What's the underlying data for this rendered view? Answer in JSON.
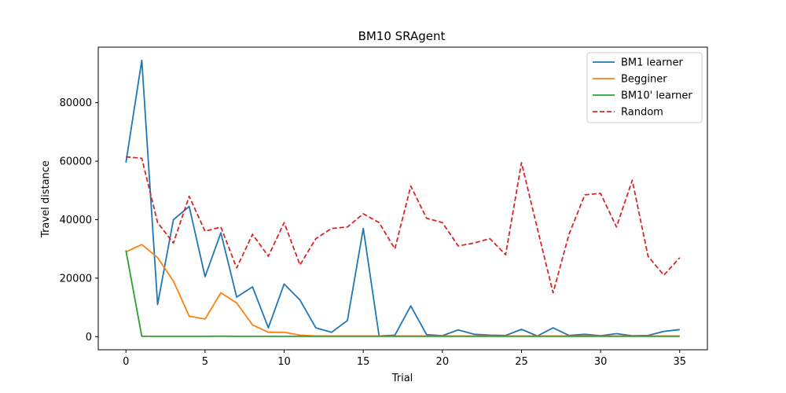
{
  "chart_data": {
    "type": "line",
    "title": "BM10  SRAgent",
    "xlabel": "Trial",
    "ylabel": "Travel distance",
    "xlim": [
      -1.75,
      36.75
    ],
    "ylim": [
      -4500,
      99000
    ],
    "xticks": [
      0,
      5,
      10,
      15,
      20,
      25,
      30,
      35
    ],
    "yticks": [
      0,
      20000,
      40000,
      60000,
      80000
    ],
    "grid": false,
    "legend_position": "top-right",
    "x": [
      0,
      1,
      2,
      3,
      4,
      5,
      6,
      7,
      8,
      9,
      10,
      11,
      12,
      13,
      14,
      15,
      16,
      17,
      18,
      19,
      20,
      21,
      22,
      23,
      24,
      25,
      26,
      27,
      28,
      29,
      30,
      31,
      32,
      33,
      34,
      35
    ],
    "series": [
      {
        "name": "BM1 learner",
        "color": "#1f77b4",
        "dash": "solid",
        "values": [
          59500,
          94500,
          11000,
          40000,
          44500,
          20500,
          35500,
          13500,
          17000,
          3000,
          18000,
          12500,
          3000,
          1500,
          5500,
          37000,
          200,
          500,
          10500,
          700,
          300,
          2300,
          800,
          500,
          400,
          2500,
          200,
          3000,
          400,
          800,
          300,
          1000,
          300,
          400,
          1800,
          2400
        ]
      },
      {
        "name": "Begginer",
        "color": "#ff7f0e",
        "dash": "solid",
        "values": [
          29000,
          31500,
          27000,
          19000,
          7000,
          6000,
          15000,
          11500,
          4000,
          1500,
          1500,
          500,
          200,
          200,
          200,
          200,
          200,
          200,
          200,
          200,
          200,
          200,
          200,
          200,
          200,
          200,
          200,
          200,
          200,
          200,
          200,
          200,
          200,
          200,
          200,
          200
        ]
      },
      {
        "name": "BM10' learner",
        "color": "#2ca02c",
        "dash": "solid",
        "values": [
          29500,
          100,
          100,
          100,
          100,
          100,
          150,
          100,
          100,
          100,
          100,
          100,
          100,
          100,
          100,
          100,
          100,
          100,
          100,
          100,
          100,
          100,
          100,
          100,
          100,
          100,
          100,
          100,
          100,
          100,
          100,
          100,
          100,
          100,
          100,
          100
        ]
      },
      {
        "name": "Random",
        "color": "#d62728",
        "dash": "dashed",
        "values": [
          61500,
          61000,
          39000,
          32000,
          48000,
          36000,
          37500,
          23500,
          35000,
          27500,
          39000,
          24500,
          33500,
          37000,
          37500,
          42000,
          39000,
          30000,
          51500,
          40500,
          39000,
          31000,
          32000,
          33500,
          28000,
          59500,
          37000,
          15000,
          35000,
          48500,
          49000,
          37500,
          53500,
          27500,
          21000,
          27000
        ]
      }
    ]
  }
}
